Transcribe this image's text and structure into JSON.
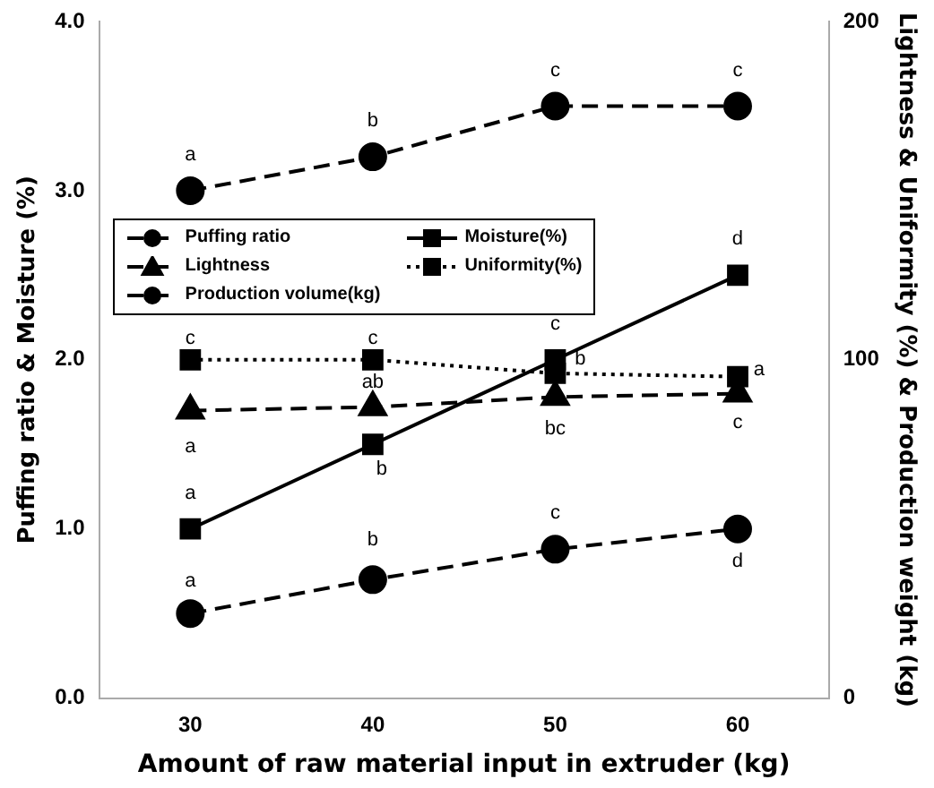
{
  "chart_data": {
    "type": "line",
    "xlabel": "Amount of raw material input in extruder (kg)",
    "ylabel": "Puffing ratio & Moisture (%)",
    "y2label": "Lightness & Uniformity (%) & Production weight (kg)",
    "x": [
      30,
      40,
      50,
      60
    ],
    "xlim": [
      25,
      65
    ],
    "xticks": [
      30,
      40,
      50,
      60
    ],
    "ylim": [
      0,
      4
    ],
    "yticks": [
      {
        "value": 0,
        "label": "0.0"
      },
      {
        "value": 1,
        "label": "1.0"
      },
      {
        "value": 2,
        "label": "2.0"
      },
      {
        "value": 3,
        "label": "3.0"
      },
      {
        "value": 4,
        "label": "4.0"
      }
    ],
    "y2lim": [
      0,
      200
    ],
    "y2ticks": [
      0,
      100,
      200
    ],
    "grid": false,
    "legend": "top left",
    "series": [
      {
        "name": "Puffing ratio",
        "color": "#000000",
        "values": [
          3.0,
          3.2,
          3.5,
          3.5
        ],
        "marker": "circle",
        "line_style": "dashed"
      },
      {
        "name": "Moisture(%)",
        "color": "#000000",
        "values": [
          1.0,
          1.5,
          2.0,
          2.5
        ],
        "marker": "square",
        "line_style": "solid"
      },
      {
        "name": "Lightness",
        "color": "#000000",
        "values": [
          85,
          86,
          89,
          90
        ],
        "axis": "y2",
        "marker": "triangle",
        "line_style": "dashed"
      },
      {
        "name": "Uniformity(%)",
        "color": "#000000",
        "values": [
          100,
          100,
          96,
          95
        ],
        "axis": "y2",
        "marker": "square",
        "line_style": "dotted"
      },
      {
        "name": "Production volume(kg)",
        "color": "#000000",
        "values": [
          25,
          35,
          44,
          50
        ],
        "axis": "y2",
        "marker": "circle",
        "line_style": "dashed"
      }
    ],
    "annotations": [
      {
        "text": "a",
        "x": 30,
        "y": 3.0
      },
      {
        "text": "b",
        "x": 40,
        "y": 3.2
      },
      {
        "text": "c",
        "x": 50,
        "y": 3.5
      },
      {
        "text": "c",
        "x": 60,
        "y": 3.5
      },
      {
        "text": "a",
        "x": 30,
        "y": 1.0
      },
      {
        "text": "b",
        "x": 40,
        "y": 1.5
      },
      {
        "text": "c",
        "x": 50,
        "y": 2.0
      },
      {
        "text": "d",
        "x": 60,
        "y": 2.5
      },
      {
        "text": "c",
        "x": 30,
        "y": 2.0
      },
      {
        "text": "c",
        "x": 40,
        "y": 2.0
      },
      {
        "text": "b",
        "x": 50,
        "y": 1.92
      },
      {
        "text": "a",
        "x": 60,
        "y": 1.9
      },
      {
        "text": "a",
        "x": 30,
        "y": 1.7
      },
      {
        "text": "ab",
        "x": 40,
        "y": 1.72
      },
      {
        "text": "bc",
        "x": 50,
        "y": 1.78
      },
      {
        "text": "c",
        "x": 60,
        "y": 1.8
      },
      {
        "text": "a",
        "x": 30,
        "y": 0.5
      },
      {
        "text": "b",
        "x": 40,
        "y": 0.7
      },
      {
        "text": "c",
        "x": 50,
        "y": 0.88
      },
      {
        "text": "d",
        "x": 60,
        "y": 1.0
      }
    ]
  }
}
